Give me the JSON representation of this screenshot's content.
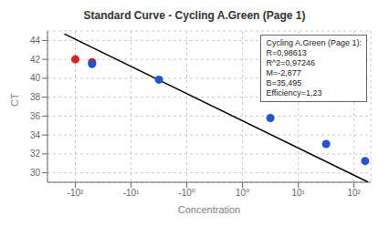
{
  "chart_data": {
    "type": "scatter",
    "title": "Standard Curve - Cycling A.Green (Page 1)",
    "x_label": "Concentration",
    "y_label": "CT",
    "series": [
      {
        "type": "line",
        "color": "#000000",
        "x": [
          -3.2,
          2.25
        ],
        "values": [
          44.7014,
          29.02175
        ]
      },
      {
        "type": "scatter",
        "color": "#dd2222",
        "x": [
          -3.0,
          -2.7
        ],
        "values": [
          42.0,
          41.7
        ]
      },
      {
        "type": "scatter",
        "color": "#2255cc",
        "x": [
          -2.7,
          -1.5,
          0.5,
          1.5,
          2.2
        ],
        "values": [
          41.5,
          39.85,
          35.8,
          33.05,
          31.25
        ]
      }
    ],
    "xlim": [
      -3.5,
      2.3
    ],
    "xticks": [
      {
        "value": -3.0,
        "label": "-10²"
      },
      {
        "value": -2.0,
        "label": "-10¹"
      },
      {
        "value": -1.0,
        "label": "-10⁰"
      },
      {
        "value": 0.0,
        "label": "10⁰"
      },
      {
        "value": 1.0,
        "label": "10¹"
      },
      {
        "value": 2.0,
        "label": "10²"
      }
    ],
    "ylim": [
      29,
      45
    ],
    "yticks": [
      30,
      32,
      34,
      36,
      38,
      40,
      42,
      44
    ],
    "grid": true,
    "annotations": [
      "Cycling A.Green (Page 1):\nR=0,98613\nR^2=0,97246\nM=-2,877\nB=35,495\nEfficiency=1,23"
    ]
  }
}
